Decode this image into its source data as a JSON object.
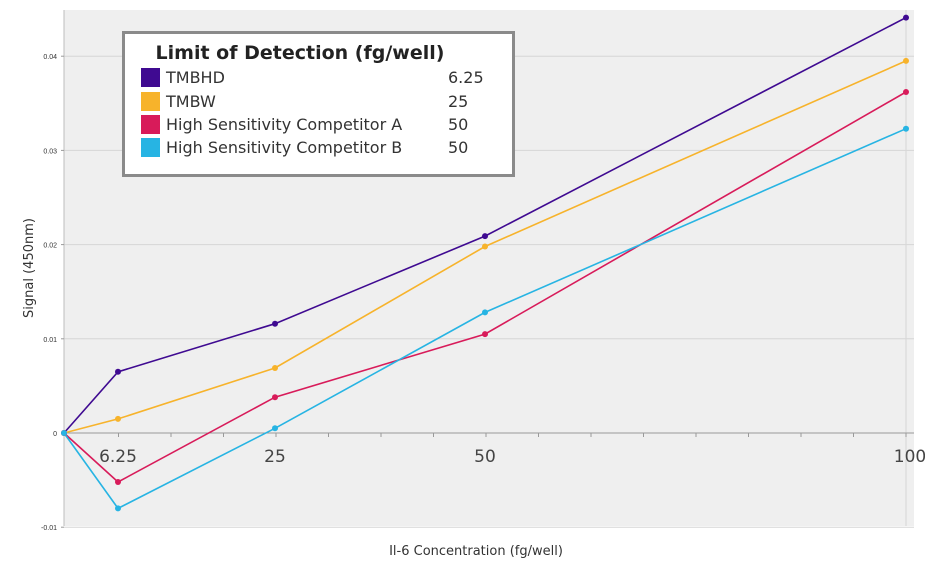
{
  "chart_data": {
    "type": "line",
    "xlabel": "Il-6 Concentration (fg/well)",
    "ylabel": "Signal (450nm)",
    "x_categories": [
      "",
      "6.25",
      "25",
      "50",
      "100"
    ],
    "ylim": [
      -0.01,
      0.042
    ],
    "yticks": [
      "-0.01",
      "0",
      "0.01",
      "0.02",
      "0.03",
      "0.04"
    ],
    "grid": true,
    "legend": {
      "title": "Limit of Detection (fg/well)",
      "placement": "top-left",
      "entries": [
        {
          "name": "TMBHD",
          "value": "6.25",
          "color": "#3f0a91"
        },
        {
          "name": "TMBW",
          "value": "25",
          "color": "#f7b32b"
        },
        {
          "name": "High Sensitivity Competitor A",
          "value": "50",
          "color": "#d81b5a"
        },
        {
          "name": "High Sensitivity Competitor B",
          "value": "50",
          "color": "#27b4e3"
        }
      ]
    },
    "series": [
      {
        "name": "TMBHD",
        "color": "#3f0a91",
        "values": [
          0,
          0.0065,
          0.0116,
          0.0209,
          0.0441
        ]
      },
      {
        "name": "TMBW",
        "color": "#f7b32b",
        "values": [
          0,
          0.0015,
          0.0069,
          0.0198,
          0.0395
        ]
      },
      {
        "name": "High Sensitivity Competitor A",
        "color": "#d81b5a",
        "values": [
          0,
          -0.0052,
          0.0038,
          0.0105,
          0.0362
        ]
      },
      {
        "name": "High Sensitivity Competitor B",
        "color": "#27b4e3",
        "values": [
          0,
          -0.008,
          0.0005,
          0.0128,
          0.0323
        ]
      }
    ]
  }
}
